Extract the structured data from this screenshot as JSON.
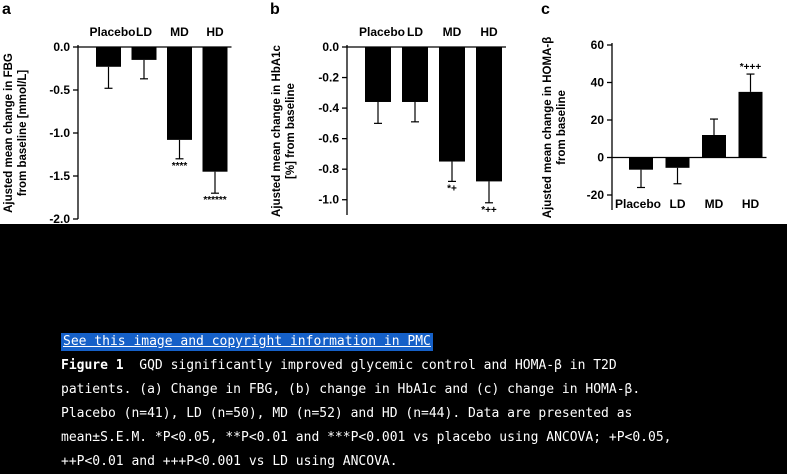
{
  "chart_data": [
    {
      "panel": "a",
      "type": "bar",
      "categories": [
        "Placebo",
        "LD",
        "MD",
        "HD"
      ],
      "values": [
        -0.23,
        -0.15,
        -1.08,
        -1.45
      ],
      "errors": [
        0.25,
        0.22,
        0.22,
        0.25
      ],
      "significance": [
        "",
        "",
        "****",
        "******"
      ],
      "ylabel_lines": [
        "Ajusted mean change in FBG",
        "from baseline [mmol/L]"
      ],
      "ylim": [
        -2.0,
        0.0
      ],
      "yticks": [
        0.0,
        -0.5,
        -1.0,
        -1.5,
        -2.0
      ],
      "ytick_labels": [
        "0.0",
        "-0.5",
        "-1.0",
        "-1.5",
        "-2.0"
      ],
      "category_labels_position": "top"
    },
    {
      "panel": "b",
      "type": "bar",
      "categories": [
        "Placebo",
        "LD",
        "MD",
        "HD"
      ],
      "values": [
        -0.36,
        -0.36,
        -0.75,
        -0.88
      ],
      "errors": [
        0.14,
        0.13,
        0.13,
        0.14
      ],
      "significance": [
        "",
        "",
        "*+",
        "*++"
      ],
      "ylabel_lines": [
        "Ajusted mean change in HbA1c",
        "[%] from baseline"
      ],
      "ylim": [
        -1.1,
        0.0
      ],
      "yticks": [
        0.0,
        -0.2,
        -0.4,
        -0.6,
        -0.8,
        -1.0
      ],
      "ytick_labels": [
        "0.0",
        "-0.2",
        "-0.4",
        "-0.6",
        "-0.8",
        "-1.0"
      ],
      "category_labels_position": "top"
    },
    {
      "panel": "c",
      "type": "bar",
      "categories": [
        "Placebo",
        "LD",
        "MD",
        "HD"
      ],
      "values": [
        -6.5,
        -5.5,
        12,
        35
      ],
      "errors": [
        9.5,
        8.5,
        8.5,
        9.5
      ],
      "significance": [
        "",
        "",
        "",
        "*+++"
      ],
      "ylabel_lines": [
        "Ajusted mean change in HOMA-β",
        "from baseline"
      ],
      "ylim": [
        -28,
        60
      ],
      "yticks": [
        60,
        40,
        20,
        0,
        -20
      ],
      "ytick_labels": [
        "60",
        "40",
        "20",
        "0",
        "-20"
      ],
      "category_labels_position": "bottom"
    }
  ],
  "link_text": "See this image and copyright information in PMC",
  "caption": {
    "figure_label": "Figure 1",
    "line1": "GQD significantly improved glycemic control and HOMA-β in T2D",
    "line2": "patients. (a) Change in FBG, (b) change in HbA1c and (c) change in HOMA-β.",
    "line3": "Placebo (n=41), LD (n=50), MD (n=52) and HD (n=44). Data are presented as",
    "line4": "mean±S.E.M. *P<0.05, **P<0.01 and ***P<0.001 vs placebo using ANCOVA; +P<0.05,",
    "line5": "++P<0.01 and +++P<0.001 vs LD using ANCOVA."
  }
}
